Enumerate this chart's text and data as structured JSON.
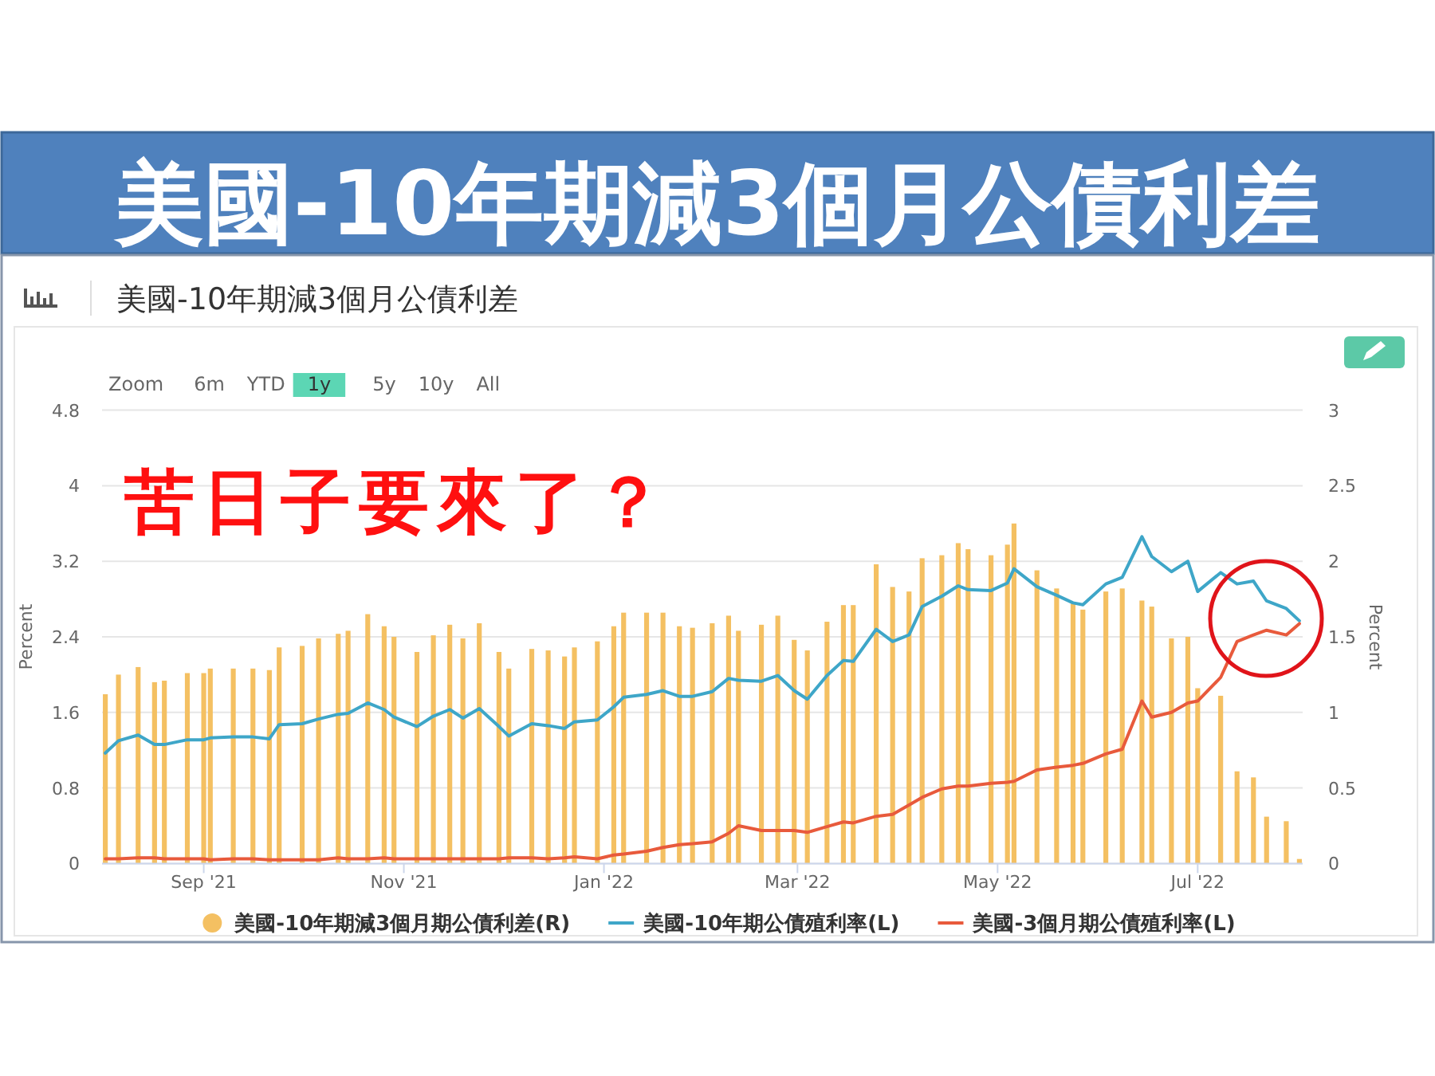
{
  "chart_data": {
    "type": "bar",
    "title": "美國-10年期減3個月公債利差",
    "subtitle": "美國-10年期減3個月公債利差",
    "ylabel": "Percent",
    "y2label": "Percent",
    "x": [
      "2021-08-02",
      "2021-08-06",
      "2021-08-12",
      "2021-08-17",
      "2021-08-20",
      "2021-08-27",
      "2021-09-01",
      "2021-09-03",
      "2021-09-10",
      "2021-09-16",
      "2021-09-21",
      "2021-09-24",
      "2021-10-01",
      "2021-10-06",
      "2021-10-12",
      "2021-10-15",
      "2021-10-21",
      "2021-10-26",
      "2021-10-29",
      "2021-11-05",
      "2021-11-10",
      "2021-11-15",
      "2021-11-19",
      "2021-11-24",
      "2021-11-30",
      "2021-12-03",
      "2021-12-10",
      "2021-12-15",
      "2021-12-20",
      "2021-12-23",
      "2021-12-30",
      "2022-01-04",
      "2022-01-07",
      "2022-01-14",
      "2022-01-19",
      "2022-01-24",
      "2022-01-28",
      "2022-02-03",
      "2022-02-08",
      "2022-02-11",
      "2022-02-18",
      "2022-02-23",
      "2022-02-28",
      "2022-03-04",
      "2022-03-10",
      "2022-03-15",
      "2022-03-18",
      "2022-03-25",
      "2022-03-30",
      "2022-04-04",
      "2022-04-08",
      "2022-04-14",
      "2022-04-19",
      "2022-04-22",
      "2022-04-29",
      "2022-05-04",
      "2022-05-06",
      "2022-05-13",
      "2022-05-19",
      "2022-05-24",
      "2022-05-27",
      "2022-06-03",
      "2022-06-08",
      "2022-06-14",
      "2022-06-17",
      "2022-06-23",
      "2022-06-28",
      "2022-07-01",
      "2022-07-08",
      "2022-07-13",
      "2022-07-18",
      "2022-07-22",
      "2022-07-28",
      "2022-08-01"
    ],
    "xlim": [
      "2021-08-01",
      "2022-08-02"
    ],
    "xticks": [
      {
        "value": "2021-09-01",
        "label": "Sep '21"
      },
      {
        "value": "2021-11-01",
        "label": "Nov '21"
      },
      {
        "value": "2022-01-01",
        "label": "Jan '22"
      },
      {
        "value": "2022-03-01",
        "label": "Mar '22"
      },
      {
        "value": "2022-05-01",
        "label": "May '22"
      },
      {
        "value": "2022-07-01",
        "label": "Jul '22"
      }
    ],
    "ylim": [
      0,
      4.8
    ],
    "yticks": [
      0,
      0.8,
      1.6,
      2.4,
      3.2,
      4,
      4.8
    ],
    "y2lim": [
      0,
      3
    ],
    "y2ticks": [
      0,
      0.5,
      1,
      1.5,
      2,
      2.5,
      3
    ],
    "grid": "y",
    "legend": "bottom",
    "series": [
      {
        "name": "美國-10年期減3個月期公債利差(R)",
        "axis": "y2",
        "color": "#f4c062",
        "values": [
          1.12,
          1.25,
          1.3,
          1.2,
          1.21,
          1.26,
          1.26,
          1.29,
          1.29,
          1.29,
          1.28,
          1.43,
          1.44,
          1.49,
          1.52,
          1.54,
          1.65,
          1.57,
          1.5,
          1.4,
          1.51,
          1.58,
          1.49,
          1.59,
          1.4,
          1.29,
          1.42,
          1.41,
          1.37,
          1.43,
          1.47,
          1.57,
          1.66,
          1.66,
          1.66,
          1.57,
          1.56,
          1.59,
          1.64,
          1.54,
          1.58,
          1.64,
          1.48,
          1.41,
          1.6,
          1.71,
          1.71,
          1.98,
          1.83,
          1.8,
          2.02,
          2.04,
          2.12,
          2.08,
          2.04,
          2.11,
          2.25,
          1.94,
          1.82,
          1.72,
          1.68,
          1.8,
          1.82,
          1.74,
          1.7,
          1.49,
          1.5,
          1.16,
          1.11,
          0.61,
          0.57,
          0.31,
          0.28,
          0.03
        ]
      },
      {
        "name": "美國-10年期公債殖利率(L)",
        "type": "line",
        "color": "#3ea6c8",
        "values": [
          1.17,
          1.3,
          1.36,
          1.26,
          1.26,
          1.31,
          1.31,
          1.33,
          1.34,
          1.34,
          1.32,
          1.47,
          1.48,
          1.53,
          1.58,
          1.59,
          1.7,
          1.63,
          1.55,
          1.45,
          1.56,
          1.63,
          1.54,
          1.64,
          1.45,
          1.35,
          1.48,
          1.46,
          1.43,
          1.5,
          1.52,
          1.66,
          1.76,
          1.79,
          1.83,
          1.77,
          1.77,
          1.82,
          1.96,
          1.94,
          1.93,
          1.99,
          1.83,
          1.74,
          1.99,
          2.15,
          2.14,
          2.48,
          2.35,
          2.42,
          2.72,
          2.83,
          2.94,
          2.9,
          2.89,
          2.97,
          3.12,
          2.93,
          2.84,
          2.76,
          2.74,
          2.96,
          3.03,
          3.46,
          3.25,
          3.09,
          3.2,
          2.88,
          3.08,
          2.96,
          2.99,
          2.78,
          2.7,
          2.57
        ]
      },
      {
        "name": "美國-3個月期公債殖利率(L)",
        "type": "line",
        "color": "#e85a3c",
        "values": [
          0.05,
          0.05,
          0.06,
          0.06,
          0.05,
          0.05,
          0.05,
          0.04,
          0.05,
          0.05,
          0.04,
          0.04,
          0.04,
          0.04,
          0.06,
          0.05,
          0.05,
          0.06,
          0.05,
          0.05,
          0.05,
          0.05,
          0.05,
          0.05,
          0.05,
          0.06,
          0.06,
          0.05,
          0.06,
          0.07,
          0.05,
          0.09,
          0.1,
          0.13,
          0.17,
          0.2,
          0.21,
          0.23,
          0.32,
          0.4,
          0.35,
          0.35,
          0.35,
          0.33,
          0.39,
          0.44,
          0.43,
          0.5,
          0.52,
          0.62,
          0.7,
          0.79,
          0.82,
          0.82,
          0.85,
          0.86,
          0.87,
          0.99,
          1.02,
          1.04,
          1.06,
          1.16,
          1.21,
          1.72,
          1.55,
          1.6,
          1.7,
          1.72,
          1.97,
          2.35,
          2.42,
          2.47,
          2.42,
          2.54
        ]
      }
    ],
    "annotations": [
      "苦日子要來了？",
      "Zoom",
      "6m",
      "YTD",
      "1y",
      "5y",
      "10y",
      "All"
    ]
  }
}
